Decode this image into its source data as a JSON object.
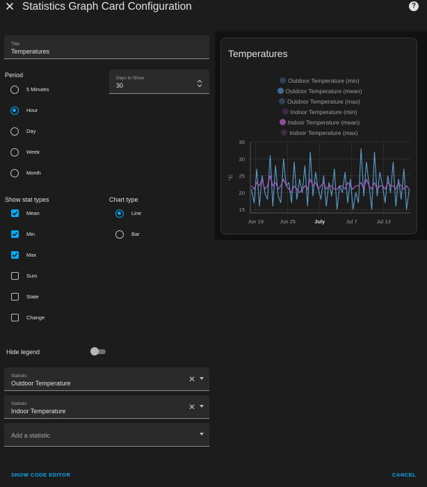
{
  "dialog": {
    "title": "Statistics Graph Card Configuration",
    "help_label": "?"
  },
  "form": {
    "title_field": {
      "label": "Title",
      "value": "Temperatures"
    },
    "period": {
      "label": "Period",
      "options": [
        {
          "label": "5 Minutes",
          "selected": false
        },
        {
          "label": "Hour",
          "selected": true
        },
        {
          "label": "Day",
          "selected": false
        },
        {
          "label": "Week",
          "selected": false
        },
        {
          "label": "Month",
          "selected": false
        }
      ]
    },
    "days_to_show": {
      "label": "Days to Show",
      "value": "30"
    },
    "stat_types": {
      "label": "Show stat types",
      "options": [
        {
          "label": "Mean",
          "checked": true
        },
        {
          "label": "Min",
          "checked": true
        },
        {
          "label": "Max",
          "checked": true
        },
        {
          "label": "Sum",
          "checked": false
        },
        {
          "label": "State",
          "checked": false
        },
        {
          "label": "Change",
          "checked": false
        }
      ]
    },
    "chart_type": {
      "label": "Chart type",
      "options": [
        {
          "label": "Line",
          "selected": true
        },
        {
          "label": "Bar",
          "selected": false
        }
      ]
    },
    "hide_legend": {
      "label": "Hide legend",
      "on": false
    },
    "statistics": [
      {
        "label": "Statistic",
        "value": "Outdoor Temperature"
      },
      {
        "label": "Statistic",
        "value": "Indoor Temperature"
      }
    ],
    "add_statistic_placeholder": "Add a statistic"
  },
  "footer": {
    "code_editor_label": "SHOW CODE EDITOR",
    "cancel_label": "CANCEL"
  },
  "preview": {
    "card_title": "Temperatures",
    "legend": [
      {
        "label": "Outdoor Temperature (min)",
        "color": "#2f4156"
      },
      {
        "label": "Outdoor Temperature (mean)",
        "color": "#3f6e96"
      },
      {
        "label": "Outdoor Temperature (max)",
        "color": "#2f4156"
      },
      {
        "label": "Indoor Temperature (min)",
        "color": "#3c2c42"
      },
      {
        "label": "Indoor Temperature (mean)",
        "color": "#8a4f9a"
      },
      {
        "label": "Indoor Temperature (max)",
        "color": "#3c2c42"
      }
    ]
  },
  "colors": {
    "accent": "#03a9f4",
    "background": "#1c1c1c",
    "outdoor_line": "#5b9fcf",
    "indoor_line": "#a35fc2"
  },
  "chart_data": {
    "type": "line",
    "ylabel": "°C",
    "ylim": [
      14,
      35
    ],
    "yticks": [
      "35",
      "30",
      "25",
      "20",
      "15"
    ],
    "xticks": [
      {
        "label": "Jun 19",
        "day": 1,
        "bold": false
      },
      {
        "label": "Jun 25",
        "day": 7,
        "bold": false
      },
      {
        "label": "July",
        "day": 13,
        "bold": true
      },
      {
        "label": "Jul 7",
        "day": 19,
        "bold": false
      },
      {
        "label": "Jul 13",
        "day": 25,
        "bold": false
      }
    ],
    "x_range_days": [
      0,
      30
    ],
    "grid": true,
    "series": [
      {
        "name": "Outdoor Temperature (mean)",
        "values": [
          21,
          17,
          27,
          16,
          25,
          20,
          18,
          31,
          16,
          28,
          19,
          17,
          30,
          22,
          23,
          17,
          29,
          18,
          24,
          20,
          28,
          16,
          32,
          19,
          26,
          21,
          18,
          25,
          16,
          23,
          19,
          27,
          15,
          22,
          20,
          26,
          17,
          24,
          15,
          20,
          17,
          33,
          19,
          29,
          22,
          15,
          32,
          19,
          26,
          22,
          17,
          25,
          20,
          29,
          16,
          24,
          18,
          27,
          15,
          21
        ]
      },
      {
        "name": "Indoor Temperature (mean)",
        "values": [
          22,
          21,
          23,
          22,
          24,
          21,
          22,
          25,
          22,
          23,
          21,
          22,
          24,
          22,
          21,
          20,
          22,
          21,
          20,
          21,
          22,
          21,
          24,
          22,
          23,
          21,
          22,
          23,
          21,
          22,
          22,
          21,
          21,
          22,
          22,
          21,
          23,
          22,
          21,
          22,
          22,
          23,
          21,
          24,
          22,
          21,
          23,
          21,
          22,
          22,
          21,
          23,
          22,
          22,
          21,
          23,
          22,
          21,
          22,
          21
        ]
      }
    ]
  }
}
